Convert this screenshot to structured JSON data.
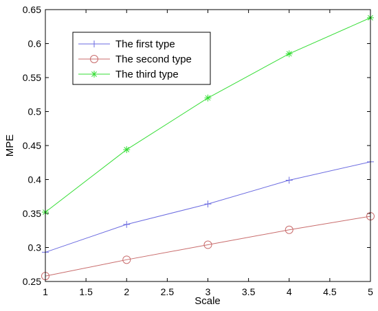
{
  "chart_data": {
    "type": "line",
    "xlabel": "Scale",
    "ylabel": "MPE",
    "xlim": [
      1,
      5
    ],
    "ylim": [
      0.25,
      0.65
    ],
    "xticks": [
      1,
      1.5,
      2,
      2.5,
      3,
      3.5,
      4,
      4.5,
      5
    ],
    "yticks": [
      0.25,
      0.3,
      0.35,
      0.4,
      0.45,
      0.5,
      0.55,
      0.6,
      0.65
    ],
    "grid": false,
    "legend_position": "top-left",
    "x": [
      1,
      2,
      3,
      4,
      5
    ],
    "series": [
      {
        "name": "The first type",
        "color": "#6a6ae0",
        "marker": "plus",
        "values": [
          0.293,
          0.334,
          0.364,
          0.399,
          0.426
        ]
      },
      {
        "name": "The second type",
        "color": "#c86a6a",
        "marker": "circle",
        "values": [
          0.258,
          0.282,
          0.304,
          0.326,
          0.346
        ]
      },
      {
        "name": "The third type",
        "color": "#33dd33",
        "marker": "star",
        "values": [
          0.352,
          0.444,
          0.52,
          0.585,
          0.638
        ]
      }
    ]
  }
}
